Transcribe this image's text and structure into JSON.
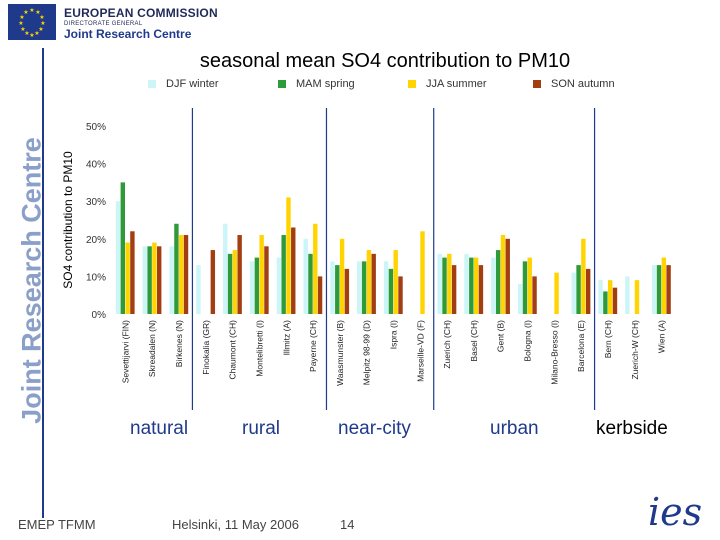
{
  "header": {
    "org_line1": "EUROPEAN COMMISSION",
    "org_line2": "DIRECTORATE GENERAL",
    "org_line3": "Joint Research Centre",
    "side_brand": "Joint Research Centre"
  },
  "footer": {
    "left": "EMEP TFMM",
    "middle": "Helsinki, 11 May 2006",
    "page": "14",
    "logo": "ies"
  },
  "group_labels": [
    "natural",
    "rural",
    "near-city",
    "urban",
    "kerbside"
  ],
  "colors": {
    "DJF winter": "#ccf5f8",
    "MAM spring": "#2e9a3a",
    "JJA summer": "#ffd400",
    "SON autumn": "#a33d12",
    "divider": "#1f3a8a"
  },
  "chart_data": {
    "type": "bar",
    "title": "seasonal mean SO4 contribution to PM10",
    "ylabel": "SO4 contribution to PM10",
    "ylim": [
      0,
      50
    ],
    "yticks": [
      "0%",
      "10%",
      "20%",
      "30%",
      "40%",
      "50%"
    ],
    "legend": [
      "DJF winter",
      "MAM spring",
      "JJA summer",
      "SON autumn"
    ],
    "categories": [
      "Sevettijarvi (FIN)",
      "Skreadalen (N)",
      "Birkenes (N)",
      "Finokalia (GR)",
      "Chaumont (CH)",
      "Montelibretti (I)",
      "Illmitz (A)",
      "Payerne (CH)",
      "Waasmunster (B)",
      "Melpitz 98-99 (D)",
      "Ispra (I)",
      "Marseille-VD (F)",
      "Zuerich (CH)",
      "Basel (CH)",
      "Gent (B)",
      "Bologna (I)",
      "Milano-Bresso (I)",
      "Barcelona (E)",
      "Bern (CH)",
      "Zuerich-W (CH)",
      "Wien (A)"
    ],
    "series": [
      {
        "name": "DJF winter",
        "values": [
          30,
          18,
          18,
          13,
          24,
          14,
          15,
          20,
          14,
          14,
          14,
          0,
          16,
          16,
          15,
          8,
          0,
          11,
          9,
          10,
          13
        ]
      },
      {
        "name": "MAM spring",
        "values": [
          35,
          18,
          24,
          0,
          16,
          15,
          21,
          16,
          13,
          14,
          12,
          0,
          15,
          15,
          17,
          14,
          0,
          13,
          6,
          0,
          13
        ]
      },
      {
        "name": "JJA summer",
        "values": [
          19,
          19,
          21,
          0,
          17,
          21,
          31,
          24,
          20,
          17,
          17,
          22,
          16,
          15,
          21,
          15,
          11,
          20,
          9,
          9,
          15
        ]
      },
      {
        "name": "SON autumn",
        "values": [
          22,
          18,
          21,
          17,
          21,
          18,
          23,
          10,
          12,
          16,
          10,
          0,
          13,
          13,
          20,
          10,
          0,
          12,
          7,
          0,
          13
        ]
      }
    ],
    "group_dividers_after_index": [
      2,
      7,
      11,
      17
    ]
  }
}
